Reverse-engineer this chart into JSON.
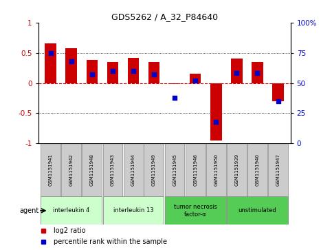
{
  "title": "GDS5262 / A_32_P84640",
  "samples": [
    "GSM1151941",
    "GSM1151942",
    "GSM1151948",
    "GSM1151943",
    "GSM1151944",
    "GSM1151949",
    "GSM1151945",
    "GSM1151946",
    "GSM1151950",
    "GSM1151939",
    "GSM1151940",
    "GSM1151947"
  ],
  "log2_ratio": [
    0.65,
    0.58,
    0.38,
    0.35,
    0.42,
    0.35,
    -0.02,
    0.15,
    -0.95,
    0.4,
    0.35,
    -0.3
  ],
  "percentile_rank": [
    75,
    68,
    57,
    60,
    60,
    57,
    38,
    52,
    18,
    58,
    58,
    35
  ],
  "groups": [
    {
      "label": "interleukin 4",
      "start": 0,
      "end": 2,
      "color": "#ccffcc"
    },
    {
      "label": "interleukin 13",
      "start": 3,
      "end": 5,
      "color": "#ccffcc"
    },
    {
      "label": "tumor necrosis\nfactor-α",
      "start": 6,
      "end": 8,
      "color": "#55cc55"
    },
    {
      "label": "unstimulated",
      "start": 9,
      "end": 11,
      "color": "#55cc55"
    }
  ],
  "ylim_left": [
    -1,
    1
  ],
  "ylim_right": [
    0,
    100
  ],
  "yticks_left": [
    -1,
    -0.5,
    0,
    0.5,
    1
  ],
  "yticks_right": [
    0,
    25,
    50,
    75,
    100
  ],
  "bar_color": "#cc0000",
  "dot_color": "#0000cc",
  "zero_line_color": "#cc0000",
  "bg_color": "#ffffff",
  "sample_box_color": "#cccccc",
  "agent_label": "agent",
  "legend_red": "log2 ratio",
  "legend_blue": "percentile rank within the sample"
}
